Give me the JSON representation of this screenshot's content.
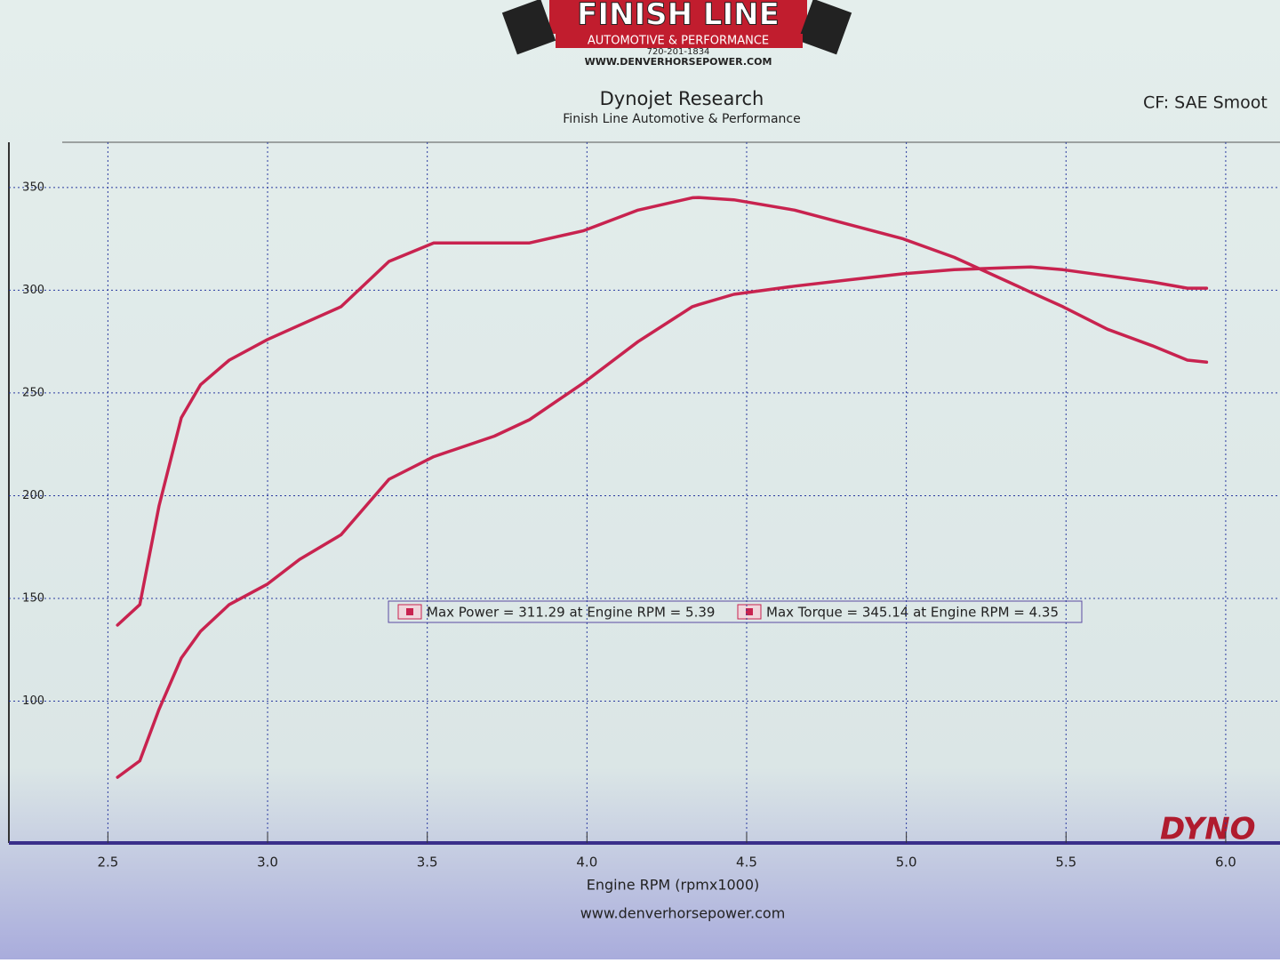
{
  "header": {
    "logo_title": "FINISH LINE",
    "logo_subtitle": "AUTOMOTIVE & PERFORMANCE",
    "logo_phone": "720-201-1834",
    "logo_url": "WWW.DENVERHORSEPOWER.COM"
  },
  "chart_data": {
    "type": "line",
    "title": "Dynojet Research",
    "subtitle": "Finish Line Automotive & Performance",
    "annotation": "CF: SAE Smoot",
    "corner_logo": "DYNO",
    "x_label": "Engine RPM (rpmx1000)",
    "footer": "www.denverhorsepower.com",
    "x": [
      2.53,
      2.6,
      2.66,
      2.73,
      2.79,
      2.88,
      3.0,
      3.1,
      3.23,
      3.38,
      3.52,
      3.71,
      3.82,
      3.99,
      4.16,
      4.33,
      4.35,
      4.46,
      4.65,
      4.82,
      4.99,
      5.15,
      5.32,
      5.39,
      5.49,
      5.63,
      5.77,
      5.88,
      5.94
    ],
    "series": [
      {
        "name": "Max Power = 311.29 at Engine RPM = 5.39",
        "color": "#c8234f",
        "values": [
          63,
          71,
          96,
          121,
          134,
          147,
          157,
          169,
          181,
          208,
          219,
          229,
          237,
          255,
          275,
          292,
          293,
          298,
          302,
          305,
          308,
          310,
          311,
          311.29,
          310,
          307,
          304,
          301,
          301
        ]
      },
      {
        "name": "Max Torque = 345.14 at Engine RPM = 4.35",
        "color": "#c8234f",
        "values": [
          137,
          147,
          195,
          238,
          254,
          266,
          276,
          283,
          292,
          314,
          323,
          323,
          323,
          329,
          339,
          345,
          345.14,
          344,
          339,
          332,
          325,
          316,
          304,
          299,
          292,
          281,
          273,
          266,
          265
        ]
      }
    ],
    "xlim": [
      2.19,
      6.17
    ],
    "xticks": [
      2.5,
      {
        "value": 3,
        "label": "3.0"
      },
      3.5,
      {
        "value": 4,
        "label": "4.0"
      },
      4.5,
      {
        "value": 5,
        "label": "5.0"
      },
      5.5,
      {
        "value": 6,
        "label": "6.0"
      }
    ],
    "ylim": [
      31,
      372
    ],
    "yticks": [
      100,
      150,
      200,
      250,
      300,
      350
    ],
    "grid": true
  }
}
